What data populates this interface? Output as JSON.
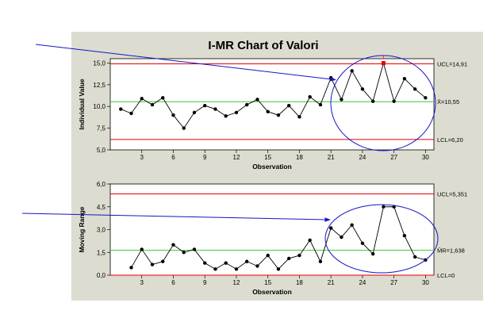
{
  "colors": {
    "background": "#ffffff",
    "panel": "#dcdcd0",
    "plot": "#ffffff",
    "control_limit": "#e60000",
    "center_line": "#33cc33",
    "data": "#000000",
    "annotation": "#1515c8",
    "out_of_control": "#e60000"
  },
  "chart_data": [
    {
      "type": "line",
      "title": "I-MR Chart of Valori",
      "xlabel": "Observation",
      "ylabel": "Individual Value",
      "x": [
        1,
        2,
        3,
        4,
        5,
        6,
        7,
        8,
        9,
        10,
        11,
        12,
        13,
        14,
        15,
        16,
        17,
        18,
        19,
        20,
        21,
        22,
        23,
        24,
        25,
        26,
        27,
        28,
        29,
        30
      ],
      "values": [
        9.7,
        9.2,
        10.9,
        10.2,
        11.0,
        9.0,
        7.5,
        9.3,
        10.1,
        9.7,
        8.9,
        9.3,
        10.2,
        10.8,
        9.4,
        9.0,
        10.1,
        8.8,
        11.1,
        10.2,
        13.3,
        10.8,
        14.1,
        12.0,
        10.6,
        15.0,
        10.6,
        13.2,
        12.0,
        11.0
      ],
      "xticks": [
        3,
        6,
        9,
        12,
        15,
        18,
        21,
        24,
        27,
        30
      ],
      "yticks": [
        "5,0",
        "7,5",
        "10,0",
        "12,5",
        "15,0"
      ],
      "ylim": [
        5.0,
        15.5
      ],
      "ucl": 14.91,
      "center": 10.55,
      "lcl": 6.2,
      "ucl_label": "UCL=14,91",
      "center_label": "X̄=10,55",
      "lcl_label": "LCL=6,20",
      "flags": [
        {
          "x": 26,
          "label": "1"
        }
      ],
      "annotation": {
        "circle_from_x": 21,
        "arrow": true
      }
    },
    {
      "type": "line",
      "title": "",
      "xlabel": "Observation",
      "ylabel": "Moving Range",
      "x": [
        2,
        3,
        4,
        5,
        6,
        7,
        8,
        9,
        10,
        11,
        12,
        13,
        14,
        15,
        16,
        17,
        18,
        19,
        20,
        21,
        22,
        23,
        24,
        25,
        26,
        27,
        28,
        29,
        30
      ],
      "values": [
        0.5,
        1.7,
        0.7,
        0.9,
        2.0,
        1.5,
        1.7,
        0.8,
        0.4,
        0.8,
        0.4,
        0.9,
        0.6,
        1.3,
        0.4,
        1.1,
        1.3,
        2.3,
        0.9,
        3.1,
        2.5,
        3.3,
        2.1,
        1.4,
        4.5,
        4.5,
        2.6,
        1.2,
        1.0
      ],
      "xticks": [
        3,
        6,
        9,
        12,
        15,
        18,
        21,
        24,
        27,
        30
      ],
      "yticks": [
        "0,0",
        "1,5",
        "3,0",
        "4,5",
        "6,0"
      ],
      "ylim": [
        0.0,
        6.0
      ],
      "ucl": 5.351,
      "center": 1.638,
      "lcl": 0.0,
      "ucl_label": "UCL=5,351",
      "center_label": "M̄R=1,638",
      "lcl_label": "LCL=0",
      "annotation": {
        "circle_from_x": 21,
        "arrow": true
      }
    }
  ]
}
